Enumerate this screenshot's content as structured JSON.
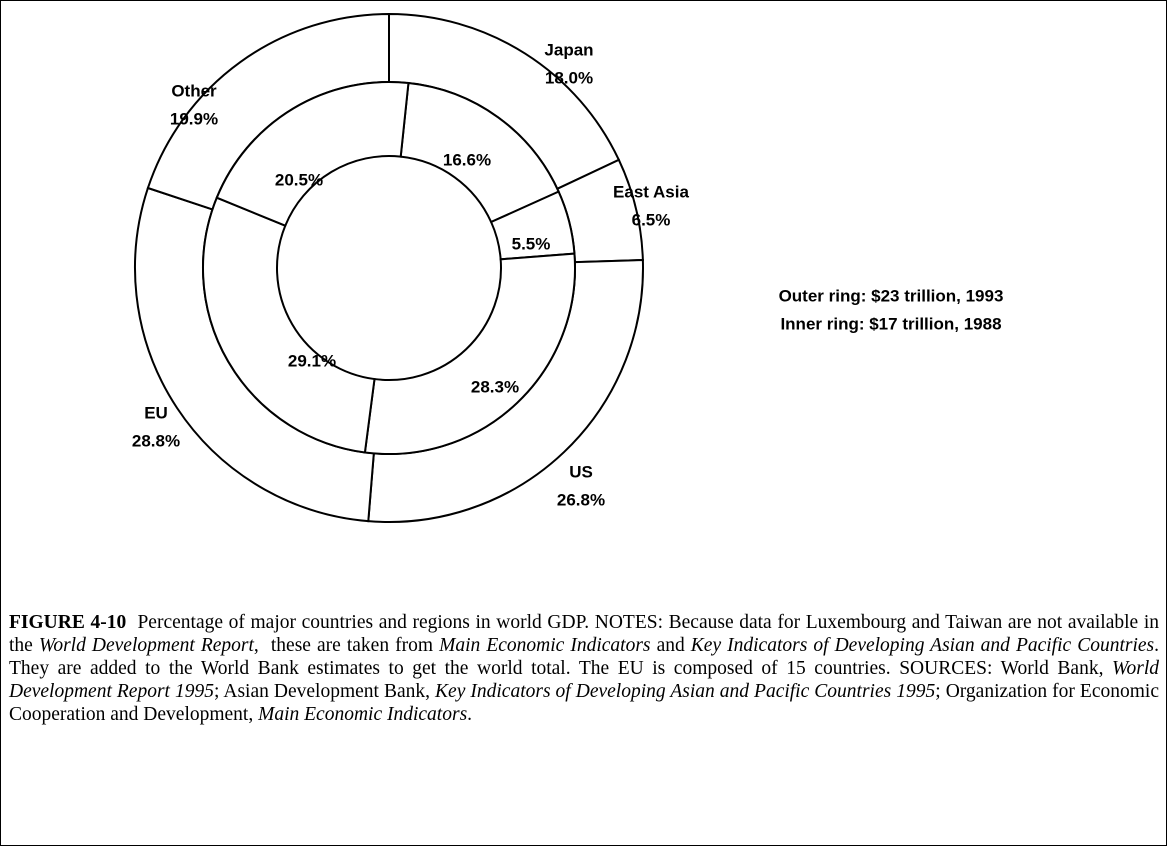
{
  "chart_data": {
    "type": "donut",
    "categories": [
      "Japan",
      "East Asia",
      "US",
      "EU",
      "Other"
    ],
    "series": [
      {
        "name": "Outer ring: $23 trillion, 1993",
        "color": "#ffffff",
        "values": [
          18.0,
          6.5,
          26.8,
          28.8,
          19.9
        ],
        "value_labels": [
          "18.0%",
          "6.5%",
          "26.8%",
          "28.8%",
          "19.9%"
        ]
      },
      {
        "name": "Inner ring: $17 trillion, 1988",
        "color": "#ffffff",
        "values": [
          16.6,
          5.5,
          28.3,
          29.1,
          20.5
        ],
        "value_labels": [
          "16.6%",
          "5.5%",
          "28.3%",
          "29.1%",
          "20.5%"
        ]
      }
    ],
    "caption": [
      {
        "text": "FIGURE 4-10",
        "style": "bold"
      },
      {
        "text": "  Percentage of major countries and regions in world GDP. NOTES: Because data for Luxembourg and Taiwan are not available in the ",
        "style": "normal"
      },
      {
        "text": "World Development Report",
        "style": "italic"
      },
      {
        "text": ",  these are taken from ",
        "style": "normal"
      },
      {
        "text": "Main Economic Indicators",
        "style": "italic"
      },
      {
        "text": " and ",
        "style": "normal"
      },
      {
        "text": "Key Indicators of Developing Asian and Pacific Countries",
        "style": "italic"
      },
      {
        "text": ". They are added to the World Bank estimates to get the world total. The EU is composed of 15 countries. SOURCES: World Bank, ",
        "style": "normal"
      },
      {
        "text": "World Development Report 1995",
        "style": "italic"
      },
      {
        "text": "; Asian Development Bank, ",
        "style": "normal"
      },
      {
        "text": "Key Indicators of Developing Asian and Pacific Countries 1995",
        "style": "italic"
      },
      {
        "text": "; Organization for Economic Cooperation and Development, ",
        "style": "normal"
      },
      {
        "text": "Main Economic Indicators",
        "style": "italic"
      },
      {
        "text": ".",
        "style": "normal"
      }
    ]
  }
}
